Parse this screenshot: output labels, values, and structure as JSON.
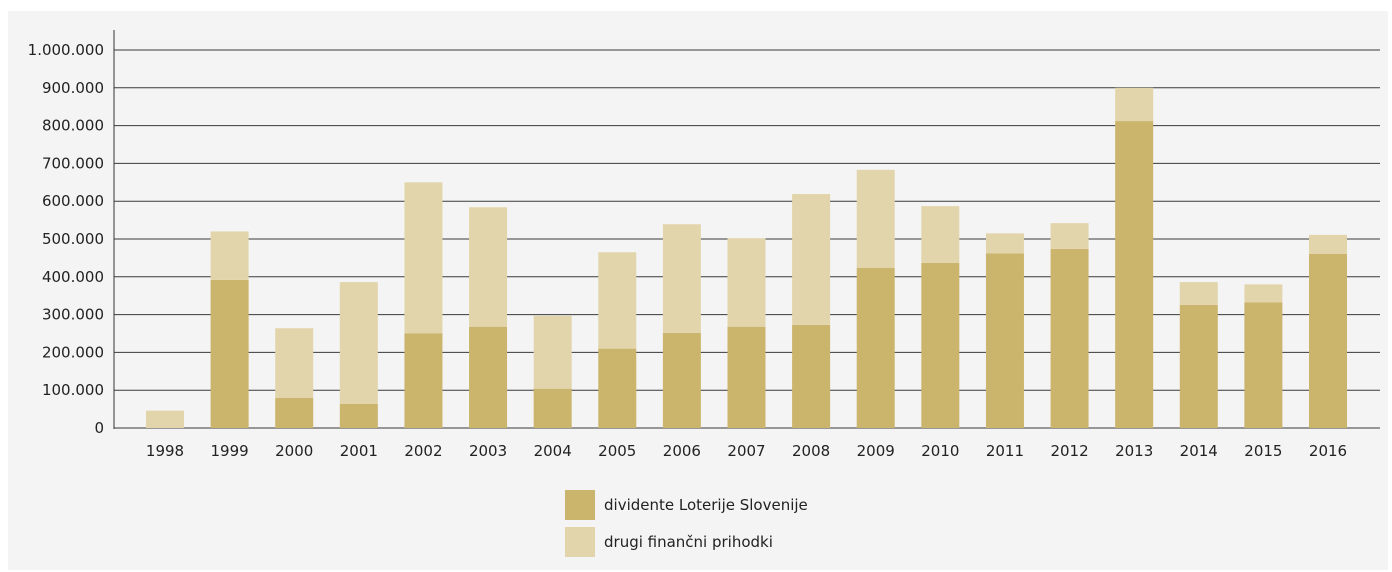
{
  "chart_data": {
    "type": "bar",
    "stacked": true,
    "categories": [
      "1998",
      "1999",
      "2000",
      "2001",
      "2002",
      "2003",
      "2004",
      "2005",
      "2006",
      "2007",
      "2008",
      "2009",
      "2010",
      "2011",
      "2012",
      "2013",
      "2014",
      "2015",
      "2016"
    ],
    "series": [
      {
        "name": "dividente Loterije Slovenije",
        "color": "#cbb46b",
        "values": [
          0,
          392000,
          80000,
          64000,
          250000,
          268000,
          104000,
          210000,
          252000,
          268000,
          273000,
          424000,
          437000,
          462000,
          474000,
          812000,
          326000,
          332000,
          461000
        ]
      },
      {
        "name": "drugi finančni prihodki",
        "color": "#e3d5ab",
        "values": [
          46000,
          128000,
          184000,
          322000,
          400000,
          316000,
          193000,
          255000,
          287000,
          234000,
          346000,
          259000,
          150000,
          53000,
          68000,
          88000,
          60000,
          48000,
          50000
        ]
      }
    ],
    "ylim": [
      0,
      1000000
    ],
    "y_ticks": [
      "0",
      "100.000",
      "200.000",
      "300.000",
      "400.000",
      "500.000",
      "600.000",
      "700.000",
      "800.000",
      "900.000",
      "1.000.000"
    ],
    "gridlines": true,
    "legend_position": "bottom-center"
  }
}
